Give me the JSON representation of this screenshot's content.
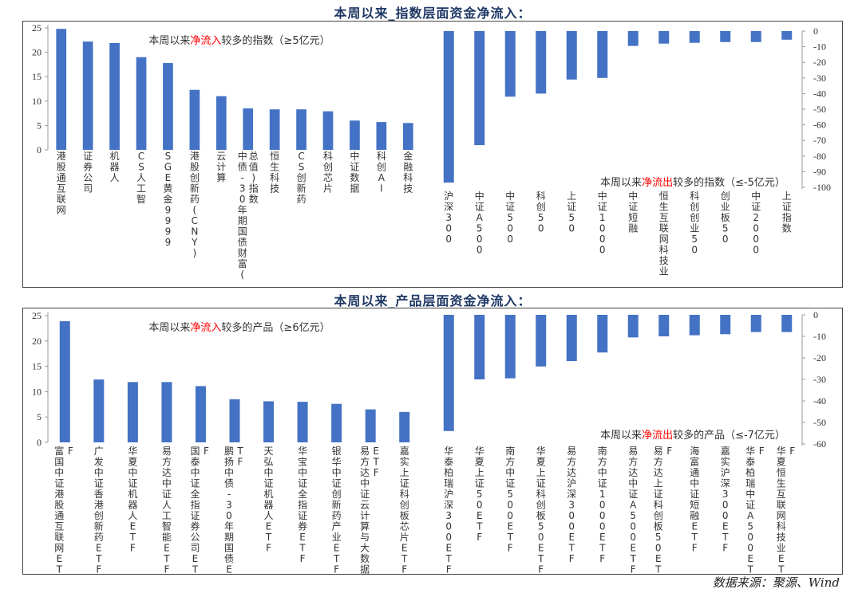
{
  "source_note": "数据来源：聚源、Wind",
  "theme": {
    "bar": "#4472c4",
    "text": "#333333",
    "highlight": "#ff0000",
    "title": "#1f3864"
  },
  "sections": [
    {
      "title": "本周以来_指数层面资金净流入："
    },
    {
      "title": "本周以来_产品层面资金净流入："
    }
  ],
  "chart_data": [
    {
      "id": "index_inflow",
      "type": "bar",
      "title_parts": [
        "本周以来",
        "净流入",
        "较多的指数（≥5亿元）"
      ],
      "categories": [
        "港股通互联网",
        "证券公司",
        "机器人",
        "CS人工智",
        "SGE黄金9999",
        "港股创新药(CNY)",
        "云计算",
        "中债-30年期国债财富(总值)指数",
        "恒生科技",
        "CS创新药",
        "科创芯片",
        "中证数据",
        "科创AI",
        "金融科技"
      ],
      "values": [
        24.8,
        22.2,
        21.9,
        19.0,
        17.8,
        12.3,
        11.0,
        8.5,
        8.3,
        8.3,
        7.9,
        6.0,
        5.7,
        5.5
      ],
      "ylim": [
        0,
        25
      ],
      "yticks": [
        0,
        5,
        10,
        15,
        20,
        25
      ]
    },
    {
      "id": "index_outflow",
      "type": "bar",
      "title_parts": [
        "本周以来",
        "净流出",
        "较多的指数（≤-5亿元）"
      ],
      "categories": [
        "沪深300",
        "中证A500",
        "中证500",
        "科创50",
        "上证50",
        "中证1000",
        "中证短融",
        "恒生互联网科技业",
        "科创创业50",
        "创业板50",
        "中证2000",
        "上证指数"
      ],
      "values": [
        -97,
        -73,
        -42,
        -40,
        -31,
        -30,
        -9.5,
        -8,
        -7.5,
        -7,
        -7,
        -5.5
      ],
      "ylim": [
        -100,
        0
      ],
      "yticks": [
        0,
        -10,
        -20,
        -30,
        -40,
        -50,
        -60,
        -70,
        -80,
        -90,
        -100
      ]
    },
    {
      "id": "product_inflow",
      "type": "bar",
      "title_parts": [
        "本周以来",
        "净流入",
        "较多的产品（≥6亿元）"
      ],
      "categories": [
        "富国中证港股通互联网ETF",
        "广发中证香港创新药ETF",
        "华夏中证机器人ETF",
        "易方达中证人工智能ETF",
        "国泰中证全指证券公司ETF",
        "鹏扬中债-30年期国债ETF",
        "天弘中证机器人ETF",
        "华宝中证全指证券ETF",
        "银华中证创新药产业ETF",
        "易方达中证云计算与大数据ETF",
        "嘉实上证科创板芯片ETF"
      ],
      "values": [
        23.9,
        12.4,
        11.9,
        11.9,
        11.1,
        8.5,
        8.1,
        8.0,
        7.6,
        6.5,
        6.0
      ],
      "ylim": [
        0,
        25
      ],
      "yticks": [
        0,
        5,
        10,
        15,
        20,
        25
      ]
    },
    {
      "id": "product_outflow",
      "type": "bar",
      "title_parts": [
        "本周以来",
        "净流出",
        "较多的产品（≤-7亿元）"
      ],
      "categories": [
        "华泰柏瑞沪深300ETF",
        "华夏上证50ETF",
        "南方中证500ETF",
        "华夏上证科创板50ETF",
        "易方达沪深300ETF",
        "南方中证1000ETF",
        "易方达中证A500ETF",
        "易方达上证科创板50ETF",
        "海富通中证短融ETF",
        "嘉实沪深300ETF",
        "华泰柏瑞中证A500ETF",
        "华夏恒生互联网科技业ETF"
      ],
      "values": [
        -54,
        -30,
        -29.5,
        -24,
        -21.5,
        -17.5,
        -10.5,
        -10,
        -9.5,
        -9,
        -8,
        -8
      ],
      "ylim": [
        -60,
        0
      ],
      "yticks": [
        0,
        -10,
        -20,
        -30,
        -40,
        -50,
        -60
      ]
    }
  ]
}
